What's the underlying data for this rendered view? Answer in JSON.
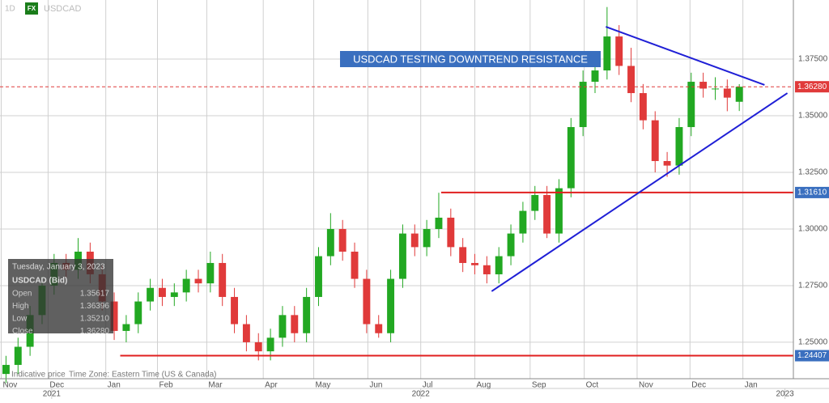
{
  "chart_data": {
    "type": "candlestick",
    "symbol": "USDCAD",
    "timeframe": "1D",
    "badge": "FX",
    "annotation": "USDCAD TESTING DOWNTREND RESISTANCE",
    "footer": [
      "Indicative price",
      "Time Zone: Eastern Time (US & Canada)"
    ],
    "tooltip": {
      "date": "Tuesday, January 3, 2023",
      "title": "USDCAD (Bid)",
      "rows": [
        [
          "Open",
          "1.35617"
        ],
        [
          "High",
          "1.36396"
        ],
        [
          "Low",
          "1.35210"
        ],
        [
          "Close",
          "1.36280"
        ]
      ]
    },
    "up_color": "#22a822",
    "down_color": "#e03a3a",
    "xlim": [
      0,
      66
    ],
    "ylim": [
      1.2339,
      1.4011
    ],
    "grid": true,
    "xticks": [
      {
        "value": 0.1,
        "label": "Nov"
      },
      {
        "value": 4.0,
        "label": "Dec"
      },
      {
        "value": 8.8,
        "label": "Jan"
      },
      {
        "value": 13.1,
        "label": "Feb"
      },
      {
        "value": 17.2,
        "label": "Mar"
      },
      {
        "value": 21.9,
        "label": "Apr"
      },
      {
        "value": 26.1,
        "label": "May"
      },
      {
        "value": 30.6,
        "label": "Jun"
      },
      {
        "value": 35.0,
        "label": "Jul"
      },
      {
        "value": 39.5,
        "label": "Aug"
      },
      {
        "value": 44.1,
        "label": "Sep"
      },
      {
        "value": 48.6,
        "label": "Oct"
      },
      {
        "value": 53.0,
        "label": "Nov"
      },
      {
        "value": 57.4,
        "label": "Dec"
      },
      {
        "value": 61.8,
        "label": "Jan"
      }
    ],
    "years": [
      {
        "value": 4.3,
        "label": "2021"
      },
      {
        "value": 35.0,
        "label": "2022"
      },
      {
        "value": 65.3,
        "label": "2023"
      }
    ],
    "yticks": [
      {
        "value": 1.25,
        "label": "1.25000"
      },
      {
        "value": 1.275,
        "label": "1.27500"
      },
      {
        "value": 1.3,
        "label": "1.30000"
      },
      {
        "value": 1.325,
        "label": "1.32500"
      },
      {
        "value": 1.35,
        "label": "1.35000"
      },
      {
        "value": 1.375,
        "label": "1.37500"
      }
    ],
    "open": [
      1.236,
      1.24,
      1.248,
      1.262,
      1.275,
      1.285,
      1.282,
      1.29,
      1.28,
      1.268,
      1.255,
      1.258,
      1.268,
      1.274,
      1.27,
      1.272,
      1.278,
      1.276,
      1.285,
      1.27,
      1.258,
      1.25,
      1.246,
      1.252,
      1.262,
      1.254,
      1.27,
      1.288,
      1.3,
      1.29,
      1.278,
      1.258,
      1.254,
      1.278,
      1.298,
      1.292,
      1.3,
      1.305,
      1.292,
      1.285,
      1.284,
      1.28,
      1.288,
      1.298,
      1.308,
      1.315,
      1.298,
      1.318,
      1.345,
      1.365,
      1.37,
      1.385,
      1.372,
      1.36,
      1.348,
      1.33,
      1.328,
      1.345,
      1.365,
      1.362,
      1.362,
      1.35617
    ],
    "high": [
      1.244,
      1.252,
      1.266,
      1.279,
      1.289,
      1.289,
      1.296,
      1.294,
      1.284,
      1.272,
      1.262,
      1.272,
      1.278,
      1.278,
      1.276,
      1.282,
      1.282,
      1.29,
      1.289,
      1.274,
      1.262,
      1.254,
      1.256,
      1.266,
      1.266,
      1.274,
      1.292,
      1.307,
      1.304,
      1.294,
      1.282,
      1.262,
      1.282,
      1.302,
      1.302,
      1.304,
      1.316,
      1.309,
      1.296,
      1.289,
      1.288,
      1.292,
      1.302,
      1.312,
      1.319,
      1.319,
      1.322,
      1.349,
      1.37,
      1.378,
      1.398,
      1.39,
      1.38,
      1.364,
      1.352,
      1.334,
      1.349,
      1.369,
      1.369,
      1.367,
      1.366,
      1.36396
    ],
    "low": [
      1.232,
      1.236,
      1.244,
      1.258,
      1.271,
      1.278,
      1.278,
      1.276,
      1.264,
      1.251,
      1.25,
      1.254,
      1.264,
      1.266,
      1.266,
      1.268,
      1.272,
      1.272,
      1.266,
      1.254,
      1.246,
      1.242,
      1.242,
      1.248,
      1.25,
      1.25,
      1.266,
      1.284,
      1.286,
      1.274,
      1.254,
      1.252,
      1.25,
      1.274,
      1.288,
      1.288,
      1.296,
      1.288,
      1.281,
      1.28,
      1.276,
      1.276,
      1.284,
      1.294,
      1.304,
      1.296,
      1.294,
      1.314,
      1.341,
      1.36,
      1.366,
      1.368,
      1.356,
      1.344,
      1.325,
      1.323,
      1.324,
      1.341,
      1.358,
      1.357,
      1.352,
      1.3521
    ],
    "close": [
      1.24,
      1.248,
      1.262,
      1.275,
      1.285,
      1.282,
      1.29,
      1.28,
      1.268,
      1.255,
      1.258,
      1.268,
      1.274,
      1.27,
      1.272,
      1.278,
      1.276,
      1.285,
      1.27,
      1.258,
      1.25,
      1.246,
      1.252,
      1.262,
      1.254,
      1.27,
      1.288,
      1.3,
      1.29,
      1.278,
      1.258,
      1.254,
      1.278,
      1.298,
      1.292,
      1.3,
      1.305,
      1.292,
      1.285,
      1.284,
      1.28,
      1.288,
      1.298,
      1.308,
      1.315,
      1.298,
      1.318,
      1.345,
      1.365,
      1.37,
      1.385,
      1.372,
      1.36,
      1.348,
      1.33,
      1.328,
      1.345,
      1.365,
      1.362,
      1.362,
      1.358,
      1.3628
    ],
    "levels": [
      {
        "value": 1.3628,
        "label": "1.36280",
        "color": "#e03a3a",
        "style": "dashed",
        "from": 0
      },
      {
        "value": 1.3161,
        "label": "1.31610",
        "color": "#e01f1f",
        "style": "solid",
        "from": 36.7,
        "tag": "#3a6fbf"
      },
      {
        "value": 1.24407,
        "label": "1.24407",
        "color": "#e01f1f",
        "style": "solid",
        "from": 10.0,
        "tag": "#3a6fbf"
      }
    ],
    "trendlines": [
      {
        "x": [
          50.4,
          63.6
        ],
        "y": [
          1.3893,
          1.3636
        ],
        "color": "#1f1fd6"
      },
      {
        "x": [
          40.9,
          65.5
        ],
        "y": [
          1.2725,
          1.36
        ],
        "color": "#1f1fd6"
      }
    ]
  }
}
